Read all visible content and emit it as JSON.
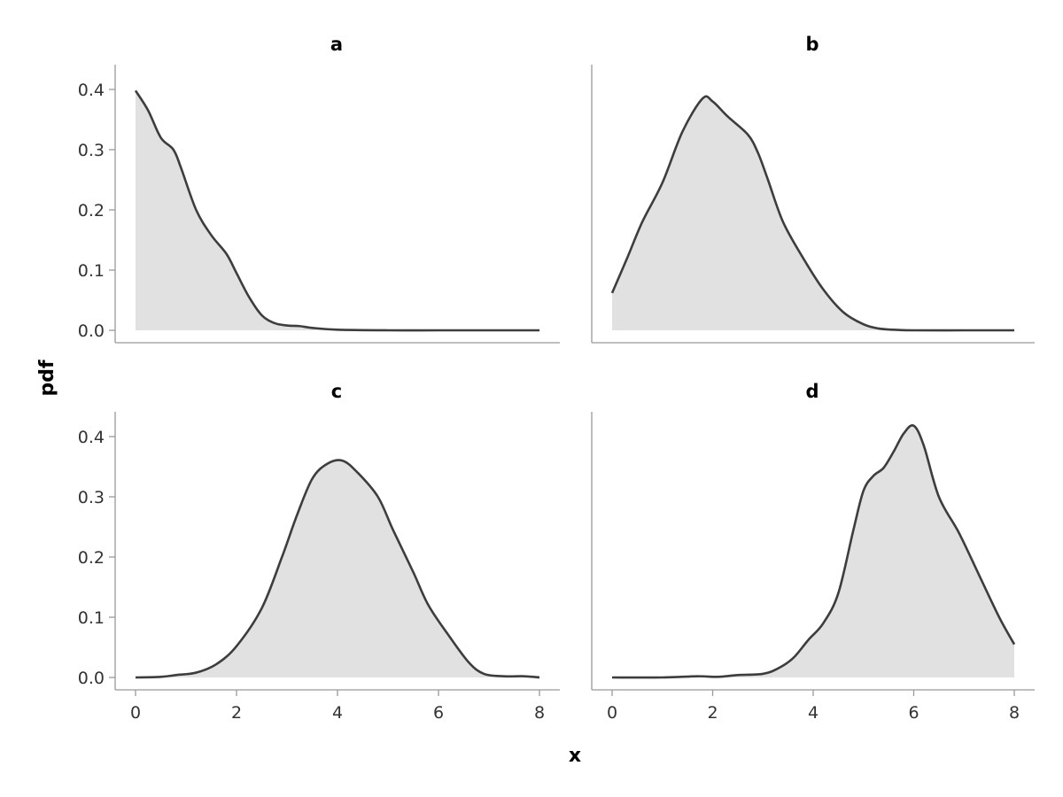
{
  "chart_data": [
    {
      "type": "area",
      "title": "a",
      "xlim": [
        0,
        8
      ],
      "ylim": [
        0,
        0.4
      ],
      "x": [
        0,
        0.25,
        0.5,
        0.75,
        0.9,
        1.2,
        1.5,
        1.8,
        2.0,
        2.25,
        2.5,
        2.75,
        3.0,
        3.25,
        3.5,
        4.0,
        5.0,
        6.0,
        7.0,
        8.0
      ],
      "y": [
        0.398,
        0.365,
        0.32,
        0.3,
        0.27,
        0.2,
        0.158,
        0.127,
        0.095,
        0.055,
        0.025,
        0.012,
        0.008,
        0.007,
        0.004,
        0.001,
        0.0,
        0.0,
        0.0,
        0.0
      ]
    },
    {
      "type": "area",
      "title": "b",
      "xlim": [
        0,
        8
      ],
      "ylim": [
        0,
        0.4
      ],
      "x": [
        0,
        0.3,
        0.6,
        1.0,
        1.4,
        1.8,
        2.0,
        2.3,
        2.7,
        2.9,
        3.1,
        3.4,
        3.8,
        4.2,
        4.6,
        5.0,
        5.3,
        5.6,
        6.0,
        7.0,
        8.0
      ],
      "y": [
        0.062,
        0.12,
        0.18,
        0.245,
        0.33,
        0.385,
        0.38,
        0.355,
        0.325,
        0.295,
        0.25,
        0.18,
        0.12,
        0.068,
        0.03,
        0.01,
        0.003,
        0.001,
        0.0,
        0.0,
        0.0
      ]
    },
    {
      "type": "area",
      "title": "c",
      "xlim": [
        0,
        8
      ],
      "ylim": [
        0,
        0.4
      ],
      "x": [
        0,
        0.5,
        0.8,
        1.2,
        1.6,
        2.0,
        2.5,
        2.9,
        3.2,
        3.5,
        3.8,
        4.1,
        4.4,
        4.8,
        5.1,
        5.5,
        5.8,
        6.2,
        6.6,
        6.9,
        7.3,
        7.7,
        8.0
      ],
      "y": [
        0.0,
        0.001,
        0.004,
        0.008,
        0.022,
        0.052,
        0.115,
        0.2,
        0.27,
        0.33,
        0.355,
        0.36,
        0.34,
        0.3,
        0.245,
        0.175,
        0.12,
        0.07,
        0.025,
        0.006,
        0.002,
        0.002,
        0.0
      ],
      "xlabel": "x",
      "xticks": [
        0,
        2,
        4,
        6,
        8
      ]
    },
    {
      "type": "area",
      "title": "d",
      "xlim": [
        0,
        8
      ],
      "ylim": [
        0,
        0.4
      ],
      "x": [
        0,
        1.0,
        1.7,
        2.1,
        2.5,
        3.0,
        3.3,
        3.6,
        3.9,
        4.2,
        4.5,
        4.8,
        5.0,
        5.2,
        5.4,
        5.6,
        5.8,
        6.0,
        6.2,
        6.5,
        6.9,
        7.3,
        7.7,
        8.0
      ],
      "y": [
        0.0,
        0.0,
        0.002,
        0.001,
        0.004,
        0.006,
        0.015,
        0.032,
        0.062,
        0.09,
        0.14,
        0.245,
        0.31,
        0.335,
        0.348,
        0.375,
        0.405,
        0.418,
        0.385,
        0.3,
        0.24,
        0.17,
        0.1,
        0.055
      ],
      "xlabel": "x",
      "xticks": [
        0,
        2,
        4,
        6,
        8
      ]
    }
  ],
  "labels": {
    "x_axis": "x",
    "y_axis": "pdf"
  },
  "y_ticks": [
    "0.0",
    "0.1",
    "0.2",
    "0.3",
    "0.4"
  ],
  "x_ticks": [
    "0",
    "2",
    "4",
    "6",
    "8"
  ],
  "colors": {
    "line": "#3d3d3d",
    "fill": "#e1e1e1",
    "axis": "#999999"
  }
}
